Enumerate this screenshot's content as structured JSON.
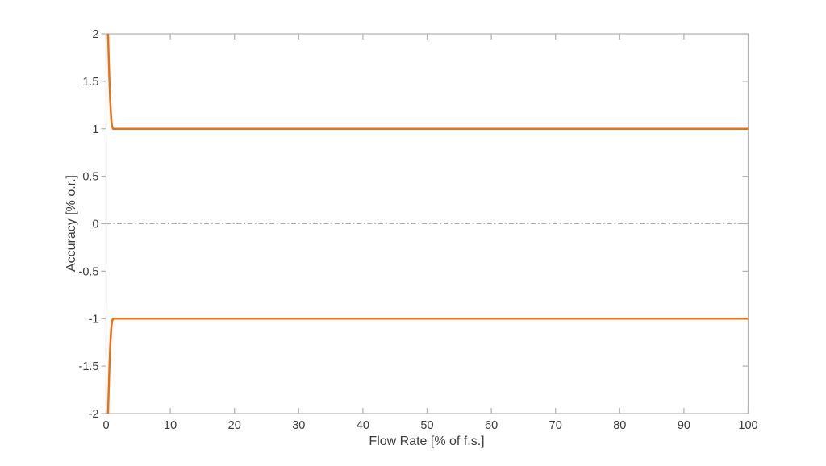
{
  "figure": {
    "background": "#ffffff",
    "axis_line_color": "#b2b2b2",
    "tick_label_color": "#3a3a3a",
    "accent_orange": "#ed6f14",
    "zero_line_color": "#ababab"
  },
  "chart_data": {
    "type": "line",
    "title": "",
    "xlabel": "Flow Rate [% of f.s.]",
    "ylabel": "Accuracy [% o.r.]",
    "xlim": [
      0,
      100
    ],
    "ylim": [
      -2,
      2
    ],
    "xticks": [
      0,
      10,
      20,
      30,
      40,
      50,
      60,
      70,
      80,
      90,
      100
    ],
    "xtick_labels": [
      "0",
      "10",
      "20",
      "30",
      "40",
      "50",
      "60",
      "70",
      "80",
      "90",
      "100"
    ],
    "yticks": [
      -2,
      -1.5,
      -1,
      -0.5,
      0,
      0.5,
      1,
      1.5,
      2
    ],
    "ytick_labels": [
      "-2",
      "-1.5",
      "-1",
      "-0.5",
      "0",
      "0.5",
      "1",
      "1.5",
      "2"
    ],
    "grid": false,
    "box_on": true,
    "legend": null,
    "series": [
      {
        "name": "upper-accuracy-limit",
        "color": "#ed6f14",
        "width": 2.5,
        "dash": "solid",
        "points": [
          [
            0.3,
            2
          ],
          [
            0.5,
            1.55
          ],
          [
            0.65,
            1.28
          ],
          [
            0.8,
            1.1
          ],
          [
            0.95,
            1.02
          ],
          [
            1.1,
            1.0
          ],
          [
            100,
            1.0
          ]
        ]
      },
      {
        "name": "lower-accuracy-limit",
        "color": "#ed6f14",
        "width": 2.5,
        "dash": "solid",
        "points": [
          [
            0.3,
            -2
          ],
          [
            0.5,
            -1.55
          ],
          [
            0.65,
            -1.28
          ],
          [
            0.8,
            -1.1
          ],
          [
            0.95,
            -1.02
          ],
          [
            1.1,
            -1.0
          ],
          [
            100,
            -1.0
          ]
        ]
      },
      {
        "name": "zero-reference-line",
        "color": "#ababab",
        "width": 1,
        "dash": "dashdot",
        "points": [
          [
            0,
            0
          ],
          [
            100,
            0
          ]
        ]
      }
    ]
  }
}
